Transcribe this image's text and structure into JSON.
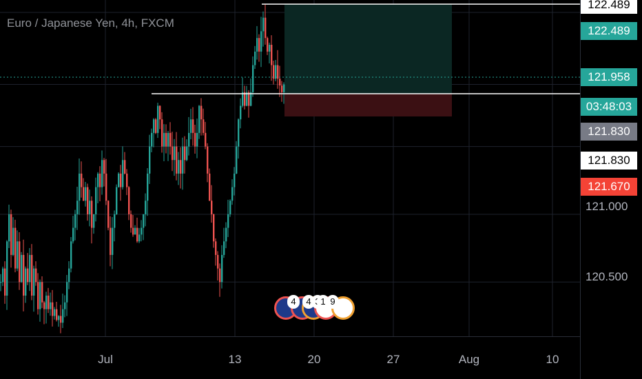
{
  "title": "Euro / Japanese Yen, 4h, FXCM",
  "colors": {
    "up": "#26a69a",
    "down": "#ef5350",
    "grid": "#1e222d",
    "position_profit": "#0c2a24",
    "position_loss": "#3a0f12"
  },
  "price_tags": {
    "top": "122.489",
    "take_profit": "122.489",
    "current": "121.958",
    "countdown": "03:48:03",
    "entry_gray": "121.830",
    "entry_white": "121.830",
    "stop": "121.670"
  },
  "y_axis_ticks": [
    "121.000",
    "120.500"
  ],
  "x_axis_ticks": [
    "Jul",
    "13",
    "20",
    "27",
    "Aug",
    "10"
  ],
  "event_badges": [
    "4",
    "4",
    "3",
    "1",
    "9"
  ],
  "chart_data": {
    "type": "candlestick",
    "title": "Euro / Japanese Yen, 4h, FXCM",
    "y_range": [
      120.1,
      122.55
    ],
    "position": {
      "entry": 121.83,
      "take_profit": 122.489,
      "stop_loss": 121.67
    },
    "horizontal_lines": [
      122.489,
      121.83,
      121.958
    ],
    "last_price": 121.958,
    "close_path": [
      [
        0,
        120.5
      ],
      [
        3,
        120.6
      ],
      [
        6,
        120.4
      ],
      [
        9,
        120.8
      ],
      [
        12,
        121.0
      ],
      [
        15,
        120.7
      ],
      [
        18,
        120.9
      ],
      [
        21,
        120.6
      ],
      [
        24,
        120.8
      ],
      [
        27,
        120.5
      ],
      [
        30,
        120.7
      ],
      [
        33,
        120.4
      ],
      [
        36,
        120.6
      ],
      [
        39,
        120.5
      ],
      [
        42,
        120.7
      ],
      [
        45,
        120.4
      ],
      [
        48,
        120.6
      ],
      [
        51,
        120.5
      ],
      [
        54,
        120.3
      ],
      [
        57,
        120.5
      ],
      [
        60,
        120.35
      ],
      [
        63,
        120.3
      ],
      [
        66,
        120.4
      ],
      [
        69,
        120.3
      ],
      [
        72,
        120.35
      ],
      [
        75,
        120.25
      ],
      [
        78,
        120.3
      ],
      [
        81,
        120.22
      ],
      [
        84,
        120.25
      ],
      [
        87,
        120.2
      ],
      [
        90,
        120.3
      ],
      [
        93,
        120.35
      ],
      [
        96,
        120.5
      ],
      [
        99,
        120.6
      ],
      [
        102,
        120.8
      ],
      [
        105,
        120.9
      ],
      [
        108,
        121.0
      ],
      [
        111,
        121.1
      ],
      [
        114,
        121.3
      ],
      [
        117,
        121.2
      ],
      [
        120,
        121.1
      ],
      [
        123,
        121.2
      ],
      [
        126,
        121.0
      ],
      [
        129,
        121.1
      ],
      [
        132,
        120.9
      ],
      [
        135,
        121.0
      ],
      [
        138,
        121.2
      ],
      [
        141,
        121.3
      ],
      [
        144,
        121.2
      ],
      [
        147,
        121.4
      ],
      [
        150,
        121.3
      ],
      [
        153,
        121.1
      ],
      [
        156,
        120.9
      ],
      [
        159,
        120.7
      ],
      [
        162,
        120.9
      ],
      [
        165,
        121.0
      ],
      [
        168,
        121.2
      ],
      [
        171,
        121.3
      ],
      [
        174,
        121.2
      ],
      [
        177,
        121.4
      ],
      [
        180,
        121.3
      ],
      [
        183,
        121.2
      ],
      [
        186,
        121.0
      ],
      [
        189,
        120.9
      ],
      [
        192,
        120.85
      ],
      [
        195,
        120.9
      ],
      [
        198,
        120.8
      ],
      [
        201,
        120.85
      ],
      [
        204,
        120.9
      ],
      [
        207,
        121.0
      ],
      [
        210,
        121.1
      ],
      [
        213,
        121.3
      ],
      [
        216,
        121.5
      ],
      [
        219,
        121.6
      ],
      [
        222,
        121.7
      ],
      [
        225,
        121.6
      ],
      [
        228,
        121.8
      ],
      [
        231,
        121.7
      ],
      [
        234,
        121.5
      ],
      [
        237,
        121.6
      ],
      [
        240,
        121.5
      ],
      [
        243,
        121.6
      ],
      [
        246,
        121.5
      ],
      [
        249,
        121.4
      ],
      [
        252,
        121.5
      ],
      [
        255,
        121.3
      ],
      [
        258,
        121.4
      ],
      [
        261,
        121.3
      ],
      [
        264,
        121.5
      ],
      [
        267,
        121.4
      ],
      [
        270,
        121.5
      ],
      [
        273,
        121.6
      ],
      [
        276,
        121.7
      ],
      [
        279,
        121.6
      ],
      [
        282,
        121.5
      ],
      [
        285,
        121.6
      ],
      [
        288,
        121.8
      ],
      [
        291,
        121.7
      ],
      [
        294,
        121.6
      ],
      [
        297,
        121.5
      ],
      [
        300,
        121.3
      ],
      [
        303,
        121.1
      ],
      [
        306,
        121.0
      ],
      [
        309,
        120.8
      ],
      [
        312,
        120.7
      ],
      [
        315,
        120.6
      ],
      [
        318,
        120.5
      ],
      [
        321,
        120.7
      ],
      [
        324,
        120.8
      ],
      [
        327,
        120.9
      ],
      [
        330,
        121.0
      ],
      [
        333,
        121.1
      ],
      [
        336,
        121.2
      ],
      [
        339,
        121.3
      ],
      [
        342,
        121.5
      ],
      [
        345,
        121.7
      ],
      [
        348,
        121.8
      ],
      [
        351,
        121.9
      ],
      [
        354,
        121.8
      ],
      [
        357,
        121.9
      ],
      [
        360,
        121.8
      ],
      [
        363,
        121.9
      ],
      [
        366,
        122.1
      ],
      [
        369,
        122.2
      ],
      [
        372,
        122.3
      ],
      [
        375,
        122.2
      ],
      [
        378,
        122.35
      ],
      [
        381,
        122.45
      ],
      [
        384,
        122.3
      ],
      [
        387,
        122.2
      ],
      [
        390,
        122.25
      ],
      [
        393,
        122.1
      ],
      [
        396,
        122.0
      ],
      [
        399,
        122.1
      ],
      [
        402,
        122.0
      ],
      [
        405,
        121.95
      ],
      [
        408,
        121.9
      ],
      [
        411,
        121.958
      ]
    ]
  }
}
